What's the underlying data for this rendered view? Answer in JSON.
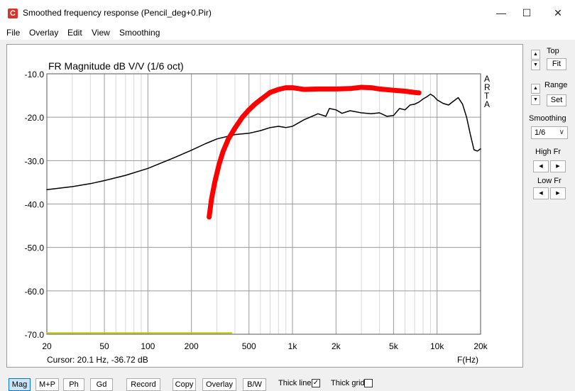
{
  "window": {
    "title": "Smoothed frequency response (Pencil_deg+0.Pir)",
    "icon_letter": "C",
    "minimize": "—",
    "maximize": "☐",
    "close": "✕"
  },
  "menu": [
    "File",
    "Overlay",
    "Edit",
    "View",
    "Smoothing"
  ],
  "side_panel": {
    "top_label": "Top",
    "fit_label": "Fit",
    "range_label": "Range",
    "set_label": "Set",
    "smoothing_label": "Smoothing",
    "smoothing_value": "1/6",
    "high_fr_label": "High Fr",
    "low_fr_label": "Low Fr",
    "up_arrow": "▲",
    "down_arrow": "▼",
    "left_arrow": "◀",
    "right_arrow": "▶"
  },
  "toolbar": {
    "buttons": [
      "Mag",
      "M+P",
      "Ph",
      "Gd",
      "Record",
      "Copy",
      "Overlay",
      "B/W"
    ],
    "active": "Mag",
    "thick_line_label": "Thick line",
    "thick_line_checked": true,
    "thick_grid_label": "Thick grid",
    "thick_grid_checked": false,
    "check_mark": "✓"
  },
  "chart_data": {
    "type": "line",
    "title": "FR Magnitude dB V/V (1/6 oct)",
    "watermark": "ARTA",
    "xlabel": "F(Hz)",
    "xscale": "log",
    "xlim": [
      20,
      20000
    ],
    "ylim": [
      -70,
      -10
    ],
    "y_ticks": [
      "-10.0",
      "-20.0",
      "-30.0",
      "-40.0",
      "-50.0",
      "-60.0",
      "-70.0"
    ],
    "y_tick_values": [
      -10,
      -20,
      -30,
      -40,
      -50,
      -60,
      -70
    ],
    "x_ticks": [
      "20",
      "50",
      "100",
      "200",
      "500",
      "1k",
      "2k",
      "5k",
      "10k",
      "20k"
    ],
    "x_tick_values": [
      20,
      50,
      100,
      200,
      500,
      1000,
      2000,
      5000,
      10000,
      20000
    ],
    "cursor_text": "Cursor: 20.1 Hz, -36.72 dB",
    "grid": true,
    "series": [
      {
        "color": "#000000",
        "x": [
          20,
          30,
          40,
          50,
          70,
          100,
          150,
          200,
          250,
          300,
          400,
          500,
          600,
          700,
          800,
          900,
          1000,
          1200,
          1500,
          1700,
          1800,
          2000,
          2200,
          2500,
          3000,
          3500,
          4000,
          4500,
          5000,
          5500,
          6000,
          6500,
          7000,
          7500,
          8000,
          8500,
          9000,
          9500,
          10000,
          11000,
          12000,
          13000,
          14000,
          15000,
          16000,
          17000,
          18000,
          19000,
          20000
        ],
        "values": [
          -36.7,
          -36.0,
          -35.3,
          -34.6,
          -33.4,
          -31.8,
          -29.4,
          -27.6,
          -26.1,
          -25.0,
          -24.0,
          -23.7,
          -23.1,
          -22.4,
          -22.1,
          -22.4,
          -22.1,
          -20.6,
          -19.2,
          -19.8,
          -18.0,
          -18.3,
          -19.1,
          -18.5,
          -19.0,
          -19.2,
          -19.0,
          -19.8,
          -19.6,
          -18.0,
          -18.3,
          -17.2,
          -17.0,
          -16.5,
          -15.8,
          -15.3,
          -14.7,
          -15.2,
          -16.0,
          -16.8,
          -17.2,
          -16.3,
          -15.5,
          -17.0,
          -20.0,
          -24.0,
          -27.5,
          -27.8,
          -27.3
        ]
      },
      {
        "color": "#ff0000",
        "x": [
          265,
          275,
          290,
          310,
          330,
          360,
          400,
          450,
          500,
          550,
          600,
          700,
          800,
          900,
          1000,
          1200,
          1500,
          2000,
          2500,
          3000,
          3500,
          4000,
          5000,
          6000,
          7000,
          7500
        ],
        "values": [
          -43.0,
          -39.0,
          -35.0,
          -31.0,
          -28.0,
          -25.0,
          -22.5,
          -20.0,
          -18.3,
          -17.0,
          -16.0,
          -14.3,
          -13.6,
          -13.2,
          -13.2,
          -13.6,
          -13.5,
          -13.5,
          -13.4,
          -13.1,
          -13.2,
          -13.5,
          -13.8,
          -14.0,
          -14.3,
          -14.4
        ]
      },
      {
        "color": "#c8c800",
        "x": [
          20,
          380
        ],
        "values": [
          -69.7,
          -69.7
        ]
      }
    ]
  }
}
